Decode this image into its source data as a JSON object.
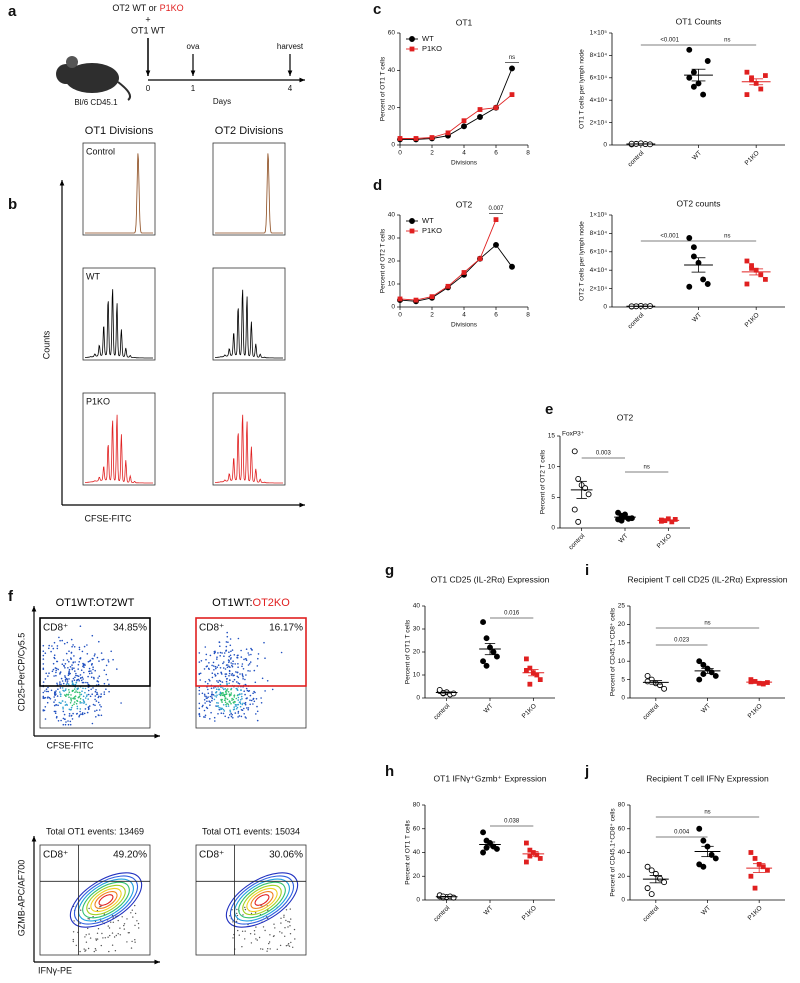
{
  "panel_letters": [
    "a",
    "b",
    "c",
    "d",
    "e",
    "f",
    "g",
    "h",
    "i",
    "j"
  ],
  "schematic": {
    "line1": "OT2 WT or",
    "line1_ko": "P1KO",
    "plus": "+",
    "line2": "OT1 WT",
    "mouse": "Bl/6 CD45.1",
    "events": [
      "ova",
      "harvest"
    ],
    "days": [
      0,
      1,
      4
    ],
    "axis_label": "Days"
  },
  "histograms": {
    "columns": [
      "OT1 Divisions",
      "OT2 Divisions"
    ],
    "rows": [
      {
        "label": "Control",
        "color": "#8b4a1c"
      },
      {
        "label": "WT",
        "color": "#000000"
      },
      {
        "label": "P1KO",
        "color": "#e02020"
      }
    ],
    "y_label": "Counts",
    "x_label": "CFSE-FITC"
  },
  "flow": {
    "top_titles": [
      [
        {
          "text": "OT1WT:OT2WT",
          "color": "#000000"
        }
      ],
      [
        {
          "text": "OT1WT:",
          "color": "#000000"
        },
        {
          "text": "OT2KO",
          "color": "#e02020"
        }
      ]
    ],
    "gate_label": "CD8⁺",
    "top_percents": [
      {
        "text": "34.85%",
        "color": "#000000"
      },
      {
        "text": "16.17%",
        "color": "#e02020"
      }
    ],
    "top_y_label": "CD25-PerCP/Cy5.5",
    "top_x_label": "CFSE-FITC",
    "bottom_titles": [
      "Total OT1 events: 13469",
      "Total OT1 events: 15034"
    ],
    "bottom_percents": [
      {
        "text": "49.20%",
        "color": "#000000"
      },
      {
        "text": "30.06%",
        "color": "#e02020"
      }
    ],
    "bottom_y_label": "GZMB-APC/AF700",
    "bottom_x_label": "IFNγ-PE"
  },
  "chart_data": [
    {
      "type": "line",
      "title": "OT1",
      "x": [
        0,
        1,
        2,
        3,
        4,
        5,
        6,
        7
      ],
      "series": [
        {
          "name": "WT",
          "color": "#000000",
          "marker": "circle",
          "values": [
            3,
            3,
            3.5,
            5,
            10,
            15,
            20,
            41
          ]
        },
        {
          "name": "P1KO",
          "color": "#e02020",
          "marker": "square",
          "values": [
            3.5,
            3.5,
            4,
            6.5,
            13,
            19,
            20,
            27
          ]
        }
      ],
      "xlim": [
        0,
        8
      ],
      "xticks": [
        0,
        2,
        4,
        6,
        8
      ],
      "ylim": [
        0,
        60
      ],
      "yticks": [
        0,
        20,
        40,
        60
      ],
      "xlabel": "Divisions",
      "ylabel": "Percent of OT1 T cells",
      "legend": "upper left",
      "annotations": [
        "ns"
      ]
    },
    {
      "type": "dot",
      "title": "OT1 Counts",
      "categories": [
        "control",
        "WT",
        "P1KO"
      ],
      "values": [
        [
          500,
          1000,
          1500,
          800,
          600,
          1200
        ],
        [
          85000,
          65000,
          55000,
          45000,
          75000,
          60000,
          52000
        ],
        [
          65000,
          60000,
          55000,
          50000,
          62000,
          45000,
          58000
        ]
      ],
      "colors": [
        "#000000",
        "#000000",
        "#e02020"
      ],
      "markers": [
        "open-circle",
        "circle",
        "square"
      ],
      "ylim": [
        0,
        100000
      ],
      "yticks": [
        0,
        {
          "value": 20000,
          "label": "2×10⁴"
        },
        {
          "value": 40000,
          "label": "4×10⁴"
        },
        {
          "value": 60000,
          "label": "6×10⁴"
        },
        {
          "value": 80000,
          "label": "8×10⁴"
        },
        {
          "value": 100000,
          "label": "1×10⁵"
        }
      ],
      "ylabel": "OT1 T cells per lymph node",
      "annotations": [
        "<0.001",
        "ns"
      ]
    },
    {
      "type": "line",
      "title": "OT2",
      "x": [
        0,
        1,
        2,
        3,
        4,
        5,
        6,
        7
      ],
      "series": [
        {
          "name": "WT",
          "color": "#000000",
          "marker": "circle",
          "values": [
            3,
            2.5,
            4,
            8.5,
            14,
            21,
            27,
            17.5
          ]
        },
        {
          "name": "P1KO",
          "color": "#e02020",
          "marker": "square",
          "values": [
            3.5,
            3,
            4.5,
            9,
            15,
            21,
            38,
            null
          ]
        }
      ],
      "xlim": [
        0,
        8
      ],
      "xticks": [
        0,
        2,
        4,
        6,
        8
      ],
      "ylim": [
        0,
        40
      ],
      "yticks": [
        0,
        10,
        20,
        30,
        40
      ],
      "xlabel": "Divisions",
      "ylabel": "Percent of OT2 T cells",
      "legend": "upper left",
      "annotations": [
        "0.007"
      ]
    },
    {
      "type": "dot",
      "title": "OT2 counts",
      "categories": [
        "control",
        "WT",
        "P1KO"
      ],
      "values": [
        [
          500,
          800,
          1200,
          600,
          1000,
          700
        ],
        [
          75000,
          65000,
          48000,
          30000,
          25000,
          22000,
          55000
        ],
        [
          50000,
          45000,
          40000,
          35000,
          30000,
          25000,
          42000
        ]
      ],
      "colors": [
        "#000000",
        "#000000",
        "#e02020"
      ],
      "markers": [
        "open-circle",
        "circle",
        "square"
      ],
      "ylim": [
        0,
        100000
      ],
      "yticks": [
        0,
        {
          "value": 20000,
          "label": "2×10⁴"
        },
        {
          "value": 40000,
          "label": "4×10⁴"
        },
        {
          "value": 60000,
          "label": "6×10⁴"
        },
        {
          "value": 80000,
          "label": "8×10⁴"
        },
        {
          "value": 100000,
          "label": "1×10⁵"
        }
      ],
      "ylabel": "OT2 T cells per lymph node",
      "annotations": [
        "<0.001",
        "ns"
      ]
    },
    {
      "type": "dot",
      "title": "OT2",
      "inset_label": "FoxP3⁺",
      "categories": [
        "control",
        "WT",
        "P1KO"
      ],
      "values": [
        [
          12.5,
          8,
          7,
          6.5,
          5.5,
          3,
          1
        ],
        [
          2.5,
          2,
          1.8,
          1.5,
          1.6,
          1.4,
          1.2,
          2.2
        ],
        [
          1.3,
          1.2,
          1.5,
          1,
          1.4,
          1.1
        ]
      ],
      "colors": [
        "#000000",
        "#000000",
        "#e02020"
      ],
      "markers": [
        "open-circle",
        "circle",
        "square"
      ],
      "ylim": [
        0,
        15
      ],
      "yticks": [
        0,
        5,
        10,
        15
      ],
      "ylabel": "Percent of OT2 T cells",
      "annotations": [
        "0.003",
        "ns"
      ]
    },
    {
      "type": "dot",
      "title": "OT1 CD25 (IL-2Rα) Expression",
      "categories": [
        "control",
        "WT",
        "P1KO"
      ],
      "values": [
        [
          3,
          2,
          2.5,
          1.5,
          2,
          3.5,
          2.2
        ],
        [
          33,
          26,
          22,
          20,
          18,
          16,
          14
        ],
        [
          17,
          13,
          11,
          10,
          8,
          12,
          6
        ]
      ],
      "colors": [
        "#000000",
        "#000000",
        "#e02020"
      ],
      "markers": [
        "open-circle",
        "circle",
        "square"
      ],
      "ylim": [
        0,
        40
      ],
      "yticks": [
        0,
        10,
        20,
        30,
        40
      ],
      "ylabel": "Percent of OT1 T cells",
      "annotations": [
        "0.016"
      ]
    },
    {
      "type": "dot",
      "title": "Recipient T cell CD25 (IL-2Rα) Expression",
      "categories": [
        "control",
        "WT",
        "P1KO"
      ],
      "values": [
        [
          6,
          5,
          4,
          3.5,
          2.5,
          4.5
        ],
        [
          10,
          9,
          8,
          7,
          6,
          5,
          6.5
        ],
        [
          5,
          4.5,
          4,
          3.8,
          4.2,
          4.4
        ]
      ],
      "colors": [
        "#000000",
        "#000000",
        "#e02020"
      ],
      "markers": [
        "open-circle",
        "circle",
        "square"
      ],
      "ylim": [
        0,
        25
      ],
      "yticks": [
        0,
        5,
        10,
        15,
        20,
        25
      ],
      "ylabel": "Percent of CD45.1⁺CD8⁺ cells",
      "annotations": [
        "0.023",
        "ns"
      ]
    },
    {
      "type": "dot",
      "title": "OT1 IFNγ⁺Gzmb⁺ Expression",
      "categories": [
        "control",
        "WT",
        "P1KO"
      ],
      "values": [
        [
          3,
          2,
          2.5,
          3,
          2,
          4,
          3
        ],
        [
          57,
          50,
          48,
          45,
          43,
          40,
          44
        ],
        [
          48,
          42,
          40,
          38,
          35,
          32,
          37
        ]
      ],
      "colors": [
        "#000000",
        "#000000",
        "#e02020"
      ],
      "markers": [
        "open-circle",
        "circle",
        "square"
      ],
      "ylim": [
        0,
        80
      ],
      "yticks": [
        0,
        20,
        40,
        60,
        80
      ],
      "ylabel": "Percent of OT1 T cells",
      "annotations": [
        "0.038"
      ]
    },
    {
      "type": "dot",
      "title": "Recipient T cell IFNγ Expression",
      "categories": [
        "control",
        "WT",
        "P1KO"
      ],
      "values": [
        [
          28,
          25,
          22,
          18,
          15,
          10,
          5
        ],
        [
          60,
          50,
          45,
          38,
          35,
          30,
          28
        ],
        [
          40,
          35,
          30,
          28,
          25,
          20,
          10
        ]
      ],
      "colors": [
        "#000000",
        "#000000",
        "#e02020"
      ],
      "markers": [
        "open-circle",
        "circle",
        "square"
      ],
      "ylim": [
        0,
        80
      ],
      "yticks": [
        0,
        20,
        40,
        60,
        80
      ],
      "ylabel": "Percent of CD45.1⁺CD8⁺ cells",
      "annotations": [
        "0.004",
        "ns"
      ]
    }
  ]
}
